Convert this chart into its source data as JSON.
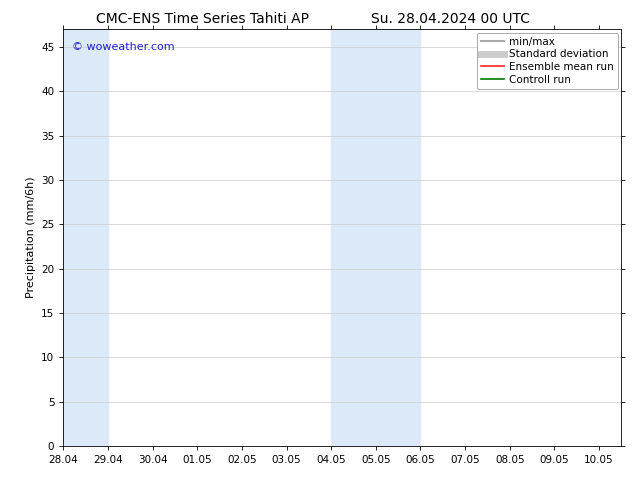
{
  "title_left": "CMC-ENS Time Series Tahiti AP",
  "title_right": "Su. 28.04.2024 00 UTC",
  "ylabel": "Precipitation (mm/6h)",
  "xlim_left": 0.0,
  "xlim_right": 12.5,
  "ylim_bottom": 0,
  "ylim_top": 47,
  "yticks": [
    0,
    5,
    10,
    15,
    20,
    25,
    30,
    35,
    40,
    45
  ],
  "xtick_labels": [
    "28.04",
    "29.04",
    "30.04",
    "01.05",
    "02.05",
    "03.05",
    "04.05",
    "05.05",
    "06.05",
    "07.05",
    "08.05",
    "09.05",
    "10.05"
  ],
  "xtick_positions": [
    0,
    1,
    2,
    3,
    4,
    5,
    6,
    7,
    8,
    9,
    10,
    11,
    12
  ],
  "shaded_regions": [
    {
      "xmin": 0.0,
      "xmax": 1.0,
      "color": "#dce9f8",
      "alpha": 1.0
    },
    {
      "xmin": 6.0,
      "xmax": 7.0,
      "color": "#dce9f8",
      "alpha": 1.0
    },
    {
      "xmin": 7.0,
      "xmax": 8.0,
      "color": "#dce9f8",
      "alpha": 1.0
    }
  ],
  "watermark_text": "© woweather.com",
  "watermark_color": "#2222cc",
  "watermark_fontsize": 8,
  "legend_items": [
    {
      "label": "min/max",
      "color": "#aaaaaa",
      "linewidth": 1.5
    },
    {
      "label": "Standard deviation",
      "color": "#cccccc",
      "linewidth": 5
    },
    {
      "label": "Ensemble mean run",
      "color": "#ff2222",
      "linewidth": 1.2
    },
    {
      "label": "Controll run",
      "color": "#007700",
      "linewidth": 1.2
    }
  ],
  "bg_color": "#ffffff",
  "font_size_title": 10,
  "font_size_ticks": 7.5,
  "font_size_ylabel": 8,
  "font_size_legend": 7.5
}
